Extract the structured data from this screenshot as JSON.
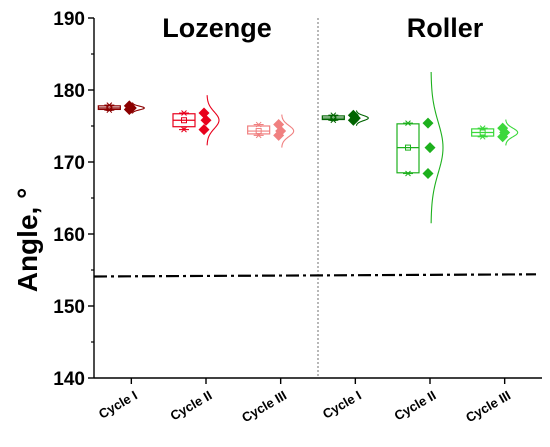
{
  "chart_data": {
    "type": "box",
    "ylabel": "Angle, °",
    "ylim": [
      140,
      190
    ],
    "yticks": [
      140,
      150,
      160,
      170,
      180,
      190
    ],
    "categories": [
      "Cycle I",
      "Cycle II",
      "Cycle III",
      "Cycle I",
      "Cycle II",
      "Cycle III"
    ],
    "panels": [
      "Lozenge",
      "Roller"
    ],
    "reference_line": {
      "style": "dash-dot",
      "y_start": 154.1,
      "y_end": 154.4
    },
    "series": [
      {
        "group": "Lozenge",
        "category": "Cycle I",
        "color": "#8b0000",
        "q1": 177.3,
        "median": 177.5,
        "q3": 177.8,
        "min": 177.2,
        "max": 177.9,
        "mean": 177.5,
        "points": [
          177.3,
          177.5,
          177.8
        ]
      },
      {
        "group": "Lozenge",
        "category": "Cycle II",
        "color": "#e8001c",
        "q1": 174.9,
        "median": 175.8,
        "q3": 176.7,
        "min": 174.5,
        "max": 176.8,
        "mean": 175.8,
        "points": [
          174.5,
          175.8,
          176.8
        ]
      },
      {
        "group": "Lozenge",
        "category": "Cycle III",
        "color": "#f08080",
        "q1": 173.9,
        "median": 174.3,
        "q3": 175.0,
        "min": 173.7,
        "max": 175.2,
        "mean": 174.3,
        "points": [
          173.7,
          174.3,
          175.2
        ]
      },
      {
        "group": "Roller",
        "category": "Cycle I",
        "color": "#006400",
        "q1": 175.9,
        "median": 176.1,
        "q3": 176.4,
        "min": 175.8,
        "max": 176.5,
        "mean": 176.1,
        "points": [
          175.8,
          176.1,
          176.5
        ]
      },
      {
        "group": "Roller",
        "category": "Cycle II",
        "color": "#1db01d",
        "q1": 168.5,
        "median": 172.0,
        "q3": 175.3,
        "min": 168.4,
        "max": 175.4,
        "mean": 172.0,
        "points": [
          168.4,
          172.0,
          175.4
        ]
      },
      {
        "group": "Roller",
        "category": "Cycle III",
        "color": "#3ad83a",
        "q1": 173.6,
        "median": 174.1,
        "q3": 174.6,
        "min": 173.5,
        "max": 174.7,
        "mean": 174.1,
        "points": [
          173.5,
          174.1,
          174.7
        ]
      }
    ]
  }
}
